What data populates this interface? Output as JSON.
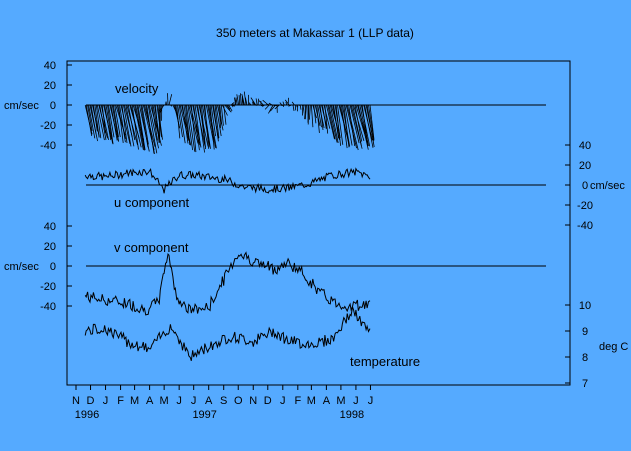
{
  "chart_data": {
    "type": "line",
    "title": "350 meters at Makassar 1 (LLP data)",
    "background": "#55aaff",
    "panel_labels": {
      "velocity": "velocity",
      "u": "u component",
      "v": "v component",
      "temperature": "temperature"
    },
    "units": {
      "velocity": "cm/sec",
      "u": "cm/sec",
      "v": "cm/sec",
      "temperature": "deg C"
    },
    "x_axis": {
      "start": "1995-11-01",
      "end": "1998-07-15",
      "month_labels": [
        "N",
        "D",
        "J",
        "F",
        "M",
        "A",
        "M",
        "J",
        "J",
        "A",
        "S",
        "O",
        "N",
        "D",
        "J",
        "F",
        "M",
        "A",
        "M",
        "J",
        "J"
      ],
      "year_labels": [
        {
          "label": "1996",
          "month_index": 0
        },
        {
          "label": "1997",
          "month_index": 8
        },
        {
          "label": "1998",
          "month_index": 18
        }
      ]
    },
    "axes": {
      "velocity_v": {
        "ticks": [
          "40",
          "20",
          "0",
          "-20",
          "-40"
        ],
        "values": [
          40,
          20,
          0,
          -20,
          -40
        ],
        "range": [
          -40,
          40
        ]
      },
      "u": {
        "ticks": [
          "40",
          "20",
          "0",
          "-20",
          "-40"
        ],
        "values": [
          40,
          20,
          0,
          -20,
          -40
        ],
        "range": [
          -40,
          40
        ]
      },
      "temperature": {
        "ticks": [
          "10",
          "9",
          "8",
          "7"
        ],
        "values": [
          10,
          9,
          8,
          7
        ],
        "range": [
          7,
          10
        ]
      }
    },
    "series": [
      {
        "name": "u component",
        "x": [
          "1995-11-20",
          "1996-01-01",
          "1996-02-15",
          "1996-04-01",
          "1996-05-01",
          "1996-06-01",
          "1996-07-01",
          "1996-09-01",
          "1996-10-15",
          "1996-12-01",
          "1997-01-15",
          "1997-03-01",
          "1997-04-15",
          "1997-06-01",
          "1997-06-30"
        ],
        "y": [
          10,
          8,
          12,
          14,
          -5,
          10,
          10,
          6,
          -2,
          -4,
          -3,
          2,
          10,
          13,
          9
        ]
      },
      {
        "name": "v component",
        "x": [
          "1995-11-20",
          "1996-01-01",
          "1996-02-15",
          "1996-03-25",
          "1996-04-20",
          "1996-05-10",
          "1996-05-25",
          "1996-06-20",
          "1996-08-01",
          "1996-09-01",
          "1996-10-01",
          "1996-11-15",
          "1996-12-15",
          "1997-01-15",
          "1997-02-15",
          "1997-03-20",
          "1997-04-20",
          "1997-05-15",
          "1997-06-30"
        ],
        "y": [
          -30,
          -34,
          -37,
          -44,
          -36,
          16,
          -28,
          -44,
          -42,
          -14,
          13,
          2,
          -3,
          3,
          -9,
          -27,
          -37,
          -40,
          -38
        ]
      },
      {
        "name": "temperature",
        "x": [
          "1995-11-20",
          "1996-01-01",
          "1996-02-15",
          "1996-04-01",
          "1996-05-15",
          "1996-06-25",
          "1996-08-01",
          "1996-09-15",
          "1996-11-01",
          "1996-12-15",
          "1997-01-15",
          "1997-03-01",
          "1997-04-15",
          "1997-05-25",
          "1997-06-30"
        ],
        "y": [
          9.0,
          9.1,
          8.6,
          8.3,
          9.2,
          8.0,
          8.4,
          8.8,
          8.6,
          9.0,
          8.6,
          8.5,
          8.7,
          9.8,
          8.9
        ]
      }
    ]
  }
}
